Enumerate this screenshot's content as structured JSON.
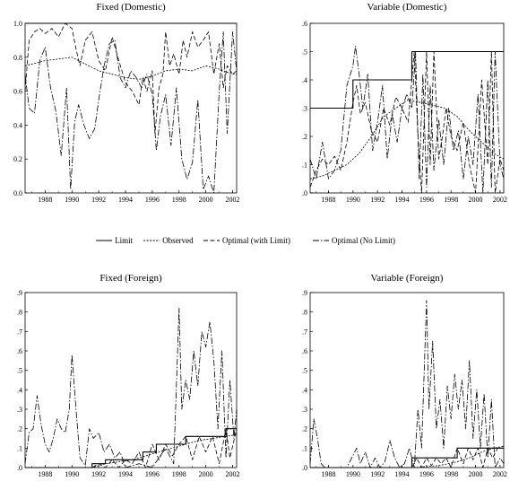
{
  "legend": {
    "items": [
      {
        "label": "Limit",
        "dash": ""
      },
      {
        "label": "Observed",
        "dash": "2,1.5"
      },
      {
        "label": "Optimal (with Limit)",
        "dash": "5,2.5"
      },
      {
        "label": "Optimal (No Limit)",
        "dash": "7,2,1.5,2"
      }
    ]
  },
  "chart_data": [
    {
      "type": "line",
      "title": "Fixed (Domestic)",
      "xlim": [
        1986.5,
        2002.3
      ],
      "ylim": [
        0.0,
        1.0
      ],
      "yticks": [
        "0.0",
        "0.2",
        "0.4",
        "0.6",
        "0.8",
        "1.0"
      ],
      "xticks": [
        "1988",
        "1990",
        "1992",
        "1994",
        "1996",
        "1998",
        "2000",
        "2002"
      ],
      "series": [
        {
          "name": "Limit",
          "x": [
            1986.5,
            2002.3
          ],
          "y": [
            1.0,
            1.0
          ]
        },
        {
          "name": "Observed",
          "x": [
            1986.5,
            1988,
            1990,
            1991,
            1992,
            1993,
            1994,
            1995,
            1996,
            1997,
            1998,
            1999,
            2000,
            2001,
            2002,
            2002.3
          ],
          "y": [
            0.75,
            0.78,
            0.8,
            0.76,
            0.72,
            0.7,
            0.68,
            0.67,
            0.69,
            0.72,
            0.73,
            0.72,
            0.75,
            0.73,
            0.7,
            0.7
          ]
        },
        {
          "name": "Optimal (with Limit)",
          "x": [
            1986.5,
            1986.8,
            1987.2,
            1987.6,
            1988,
            1988.5,
            1989,
            1989.5,
            1990,
            1990.3,
            1990.6,
            1991,
            1991.5,
            1992,
            1992.5,
            1993,
            1993.5,
            1994,
            1994.5,
            1995,
            1995.3,
            1995.6,
            1996,
            1996.2,
            1996.5,
            1996.8,
            1997,
            1997.3,
            1997.6,
            1998,
            1998.3,
            1998.6,
            1999,
            1999.4,
            1999.8,
            2000.2,
            2000.6,
            2001,
            2001.3,
            2001.6,
            2002,
            2002.3
          ],
          "y": [
            0.6,
            0.9,
            0.95,
            0.97,
            0.94,
            0.97,
            0.92,
            1.0,
            0.97,
            0.85,
            0.75,
            0.9,
            0.95,
            0.78,
            0.72,
            0.92,
            0.78,
            0.65,
            0.6,
            0.52,
            0.68,
            0.6,
            0.72,
            0.35,
            0.62,
            0.7,
            0.95,
            0.75,
            0.82,
            0.7,
            0.9,
            0.8,
            0.95,
            0.86,
            0.9,
            0.95,
            0.7,
            0.88,
            0.62,
            0.75,
            0.7,
            0.72
          ]
        },
        {
          "name": "Optimal (No Limit)",
          "x": [
            1986.5,
            1986.8,
            1987.2,
            1987.6,
            1988,
            1988.4,
            1988.8,
            1989.2,
            1989.6,
            1989.9,
            1990.2,
            1990.5,
            1990.9,
            1991.3,
            1991.7,
            1992,
            1992.4,
            1992.8,
            1993.2,
            1993.6,
            1994,
            1994.4,
            1994.8,
            1995.2,
            1995.6,
            1996,
            1996.3,
            1996.6,
            1997,
            1997.4,
            1997.8,
            1998.2,
            1998.6,
            1999,
            1999.4,
            1999.8,
            2000.2,
            2000.6,
            2001,
            2001.3,
            2001.6,
            2002,
            2002.3
          ],
          "y": [
            0.7,
            0.5,
            0.47,
            0.78,
            0.86,
            0.62,
            0.48,
            0.22,
            0.62,
            0.02,
            0.42,
            0.52,
            0.4,
            0.32,
            0.38,
            0.55,
            0.75,
            0.88,
            0.9,
            0.68,
            0.62,
            0.72,
            0.68,
            0.62,
            0.7,
            0.58,
            0.25,
            0.45,
            0.58,
            0.28,
            0.62,
            0.2,
            0.08,
            0.18,
            0.55,
            0.02,
            0.1,
            0.0,
            0.6,
            0.95,
            0.35,
            0.95,
            0.72
          ]
        }
      ]
    },
    {
      "type": "line",
      "title": "Variable (Domestic)",
      "xlim": [
        1986.5,
        2002.3
      ],
      "ylim": [
        0.0,
        0.6
      ],
      "yticks": [
        ".0",
        ".1",
        ".2",
        ".3",
        ".4",
        ".5",
        ".6"
      ],
      "xticks": [
        "1988",
        "1990",
        "1992",
        "1994",
        "1996",
        "1998",
        "2000",
        "2002"
      ],
      "series": [
        {
          "name": "Limit",
          "x": [
            1986.5,
            1990,
            1990,
            1994.8,
            1994.8,
            2002.3
          ],
          "y": [
            0.3,
            0.3,
            0.4,
            0.4,
            0.5,
            0.5
          ]
        },
        {
          "name": "Observed",
          "x": [
            1986.5,
            1987.5,
            1988.5,
            1989.5,
            1990.5,
            1991.5,
            1992.5,
            1993.5,
            1994.5,
            1995.5,
            1996.5,
            1997.5,
            1998.5,
            1999.5,
            2000.5,
            2001.5,
            2002.3
          ],
          "y": [
            0.05,
            0.06,
            0.08,
            0.1,
            0.14,
            0.2,
            0.27,
            0.3,
            0.33,
            0.32,
            0.31,
            0.3,
            0.27,
            0.22,
            0.18,
            0.14,
            0.12
          ]
        },
        {
          "name": "Optimal (with Limit)",
          "x": [
            1986.5,
            1987,
            1987.5,
            1988,
            1988.5,
            1989,
            1989.5,
            1990,
            1990.3,
            1990.6,
            1991,
            1991.5,
            1992,
            1992.5,
            1993,
            1993.5,
            1994,
            1994.5,
            1995,
            1995.3,
            1995.6,
            1996,
            1996.3,
            1996.6,
            1997,
            1997.3,
            1997.6,
            1998,
            1998.5,
            1999,
            1999.5,
            2000,
            2000.5,
            2001,
            2001.3,
            2001.6,
            2002,
            2002.3
          ],
          "y": [
            0.02,
            0.08,
            0.12,
            0.1,
            0.13,
            0.08,
            0.18,
            0.32,
            0.38,
            0.28,
            0.32,
            0.22,
            0.18,
            0.3,
            0.24,
            0.34,
            0.3,
            0.25,
            0.5,
            0.2,
            0.0,
            0.5,
            0.1,
            0.5,
            0.12,
            0.2,
            0.3,
            0.2,
            0.15,
            0.25,
            0.1,
            0.0,
            0.4,
            0.1,
            0.5,
            0.0,
            0.12,
            0.08
          ]
        },
        {
          "name": "Optimal (No Limit)",
          "x": [
            1986.5,
            1987,
            1987.5,
            1988,
            1988.5,
            1989,
            1989.5,
            1990,
            1990.2,
            1990.5,
            1990.8,
            1991.2,
            1991.6,
            1992,
            1992.4,
            1992.8,
            1993.2,
            1993.6,
            1994,
            1994.4,
            1994.8,
            1995.1,
            1995.4,
            1995.7,
            1996,
            1996.3,
            1996.6,
            1997,
            1997.4,
            1997.8,
            1998.2,
            1998.6,
            1999,
            1999.4,
            1999.8,
            2000.2,
            2000.6,
            2001,
            2001.3,
            2001.6,
            2002,
            2002.3
          ],
          "y": [
            0.12,
            0.05,
            0.18,
            0.05,
            0.08,
            0.15,
            0.38,
            0.45,
            0.52,
            0.42,
            0.3,
            0.42,
            0.15,
            0.25,
            0.38,
            0.12,
            0.28,
            0.18,
            0.3,
            0.35,
            0.3,
            0.5,
            0.05,
            0.42,
            0.02,
            0.38,
            0.08,
            0.26,
            0.1,
            0.3,
            0.15,
            0.22,
            0.05,
            0.2,
            0.1,
            0.35,
            0.0,
            0.4,
            0.02,
            0.5,
            0.1,
            0.05
          ]
        }
      ]
    },
    {
      "type": "line",
      "title": "Fixed (Foreign)",
      "xlim": [
        1986.5,
        2002.3
      ],
      "ylim": [
        0.0,
        0.9
      ],
      "yticks": [
        ".0",
        ".1",
        ".2",
        ".3",
        ".4",
        ".5",
        ".6",
        ".7",
        ".8",
        ".9"
      ],
      "xticks": [
        "1988",
        "1990",
        "1992",
        "1994",
        "1996",
        "1998",
        "2000",
        "2002"
      ],
      "series": [
        {
          "name": "Limit",
          "x": [
            1986.5,
            1991.5,
            1991.5,
            1992.5,
            1992.5,
            1995.3,
            1995.3,
            1996.3,
            1996.3,
            1998.5,
            1998.5,
            2001.5,
            2001.5,
            2002.3
          ],
          "y": [
            0.0,
            0.0,
            0.02,
            0.02,
            0.04,
            0.04,
            0.08,
            0.08,
            0.12,
            0.12,
            0.16,
            0.16,
            0.2,
            0.2
          ]
        },
        {
          "name": "Observed",
          "x": [
            1986.5,
            1988,
            1990,
            1991.5,
            1992.5,
            1993.5,
            1994.5,
            1995.5,
            1996.5,
            1997.5,
            1998.5,
            1999.5,
            2000.5,
            2001.5,
            2002.3
          ],
          "y": [
            0.0,
            0.0,
            0.0,
            0.0,
            0.02,
            0.03,
            0.04,
            0.06,
            0.08,
            0.1,
            0.12,
            0.14,
            0.15,
            0.16,
            0.17
          ]
        },
        {
          "name": "Optimal (with Limit)",
          "x": [
            1986.5,
            1991.5,
            1992,
            1992.5,
            1993,
            1993.5,
            1994,
            1994.5,
            1995,
            1995.5,
            1996,
            1996.5,
            1997,
            1997.5,
            1998,
            1998.5,
            1999,
            1999.5,
            2000,
            2000.5,
            2001,
            2001.5,
            2001.8,
            2002.3
          ],
          "y": [
            0.0,
            0.0,
            0.02,
            0.0,
            0.04,
            0.0,
            0.04,
            0.02,
            0.08,
            0.0,
            0.12,
            0.04,
            0.12,
            0.06,
            0.12,
            0.16,
            0.04,
            0.16,
            0.08,
            0.16,
            0.02,
            0.2,
            0.05,
            0.2
          ]
        },
        {
          "name": "Optimal (No Limit)",
          "x": [
            1986.5,
            1986.8,
            1987.1,
            1987.4,
            1987.7,
            1988,
            1988.3,
            1988.6,
            1988.9,
            1989.2,
            1989.5,
            1989.8,
            1990,
            1990.3,
            1990.6,
            1991,
            1991.3,
            1991.6,
            1992,
            1992.4,
            1992.8,
            1993.2,
            1993.6,
            1994,
            1995,
            1996,
            1997,
            1997.6,
            1998,
            1998.2,
            1998.5,
            1998.8,
            1999.1,
            1999.4,
            1999.7,
            2000,
            2000.3,
            2000.6,
            2000.9,
            2001.2,
            2001.5,
            2001.8,
            2002.1,
            2002.3
          ],
          "y": [
            0.02,
            0.18,
            0.2,
            0.37,
            0.22,
            0.12,
            0.08,
            0.15,
            0.25,
            0.2,
            0.18,
            0.3,
            0.58,
            0.3,
            0.05,
            0.01,
            0.2,
            0.15,
            0.18,
            0.08,
            0.12,
            0.05,
            0.08,
            0.0,
            0.02,
            0.0,
            0.1,
            0.02,
            0.82,
            0.3,
            0.45,
            0.35,
            0.6,
            0.42,
            0.7,
            0.62,
            0.75,
            0.55,
            0.2,
            0.6,
            0.05,
            0.45,
            0.15,
            0.3
          ]
        }
      ]
    },
    {
      "type": "line",
      "title": "Variable (Foreign)",
      "xlim": [
        1986.5,
        2002.3
      ],
      "ylim": [
        0.0,
        0.9
      ],
      "yticks": [
        ".0",
        ".1",
        ".2",
        ".3",
        ".4",
        ".5",
        ".6",
        ".7",
        ".8",
        ".9"
      ],
      "xticks": [
        "1988",
        "1990",
        "1992",
        "1994",
        "1996",
        "1998",
        "2000",
        "2002"
      ],
      "series": [
        {
          "name": "Limit",
          "x": [
            1986.5,
            1994.8,
            1994.8,
            1998.5,
            1998.5,
            2002.3
          ],
          "y": [
            0.0,
            0.0,
            0.05,
            0.05,
            0.1,
            0.1
          ]
        },
        {
          "name": "Observed",
          "x": [
            1986.5,
            1990,
            1995,
            1997,
            1998.5,
            1999.5,
            2000.5,
            2001.5,
            2002.3
          ],
          "y": [
            0.0,
            0.0,
            0.0,
            0.01,
            0.03,
            0.05,
            0.08,
            0.1,
            0.11
          ]
        },
        {
          "name": "Optimal (with Limit)",
          "x": [
            1986.5,
            1994.8,
            1995.2,
            1995.6,
            1996,
            1996.4,
            1996.8,
            1997.2,
            1997.6,
            1998,
            1998.5,
            1999,
            1999.4,
            1999.8,
            2000.2,
            2000.6,
            2001,
            2001.4,
            2001.8,
            2002.3
          ],
          "y": [
            0.0,
            0.0,
            0.05,
            0.0,
            0.05,
            0.01,
            0.05,
            0.02,
            0.05,
            0.0,
            0.1,
            0.02,
            0.1,
            0.04,
            0.1,
            0.0,
            0.1,
            0.05,
            0.1,
            0.1
          ]
        },
        {
          "name": "Optimal (No Limit)",
          "x": [
            1986.5,
            1986.8,
            1987.1,
            1987.4,
            1987.7,
            1988.5,
            1989.5,
            1990.3,
            1990.6,
            1991,
            1991.4,
            1991.8,
            1992.2,
            1992.6,
            1993,
            1993.4,
            1993.8,
            1994.2,
            1994.6,
            1995,
            1995.3,
            1995.6,
            1996,
            1996.2,
            1996.5,
            1996.8,
            1997.1,
            1997.4,
            1997.7,
            1998,
            1998.3,
            1998.6,
            1998.9,
            1999.2,
            1999.5,
            1999.8,
            2000.1,
            2000.4,
            2000.7,
            2001,
            2001.3,
            2001.6,
            2002,
            2002.3
          ],
          "y": [
            0.02,
            0.25,
            0.15,
            0.02,
            0.0,
            0.0,
            0.0,
            0.1,
            0.02,
            0.08,
            0.0,
            0.05,
            0.0,
            0.03,
            0.14,
            0.05,
            0.0,
            0.02,
            0.1,
            0.0,
            0.3,
            0.1,
            0.86,
            0.3,
            0.65,
            0.2,
            0.35,
            0.1,
            0.42,
            0.25,
            0.48,
            0.3,
            0.45,
            0.2,
            0.55,
            0.15,
            0.4,
            0.1,
            0.38,
            0.05,
            0.35,
            0.0,
            0.05,
            0.02
          ]
        }
      ]
    }
  ]
}
